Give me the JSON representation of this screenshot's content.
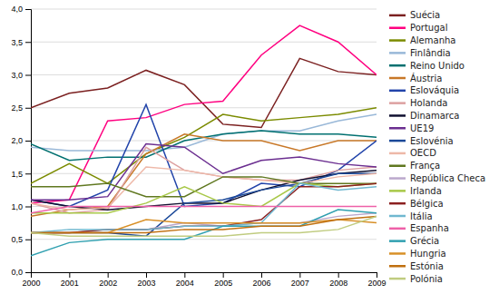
{
  "chart_data": {
    "type": "line",
    "x": [
      2000,
      2001,
      2002,
      2003,
      2004,
      2005,
      2006,
      2007,
      2008,
      2009
    ],
    "xlim": [
      2000,
      2009
    ],
    "xticks": [
      2000,
      2001,
      2002,
      2003,
      2004,
      2005,
      2006,
      2007,
      2008,
      2009
    ],
    "ylim": [
      0.0,
      4.0
    ],
    "yticks": [
      {
        "value": 0.0,
        "label": "0,0"
      },
      {
        "value": 0.5,
        "label": "0,5"
      },
      {
        "value": 1.0,
        "label": "1,0"
      },
      {
        "value": 1.5,
        "label": "1,5"
      },
      {
        "value": 2.0,
        "label": "2,0"
      },
      {
        "value": 2.5,
        "label": "2,5"
      },
      {
        "value": 3.0,
        "label": "3,0"
      },
      {
        "value": 3.5,
        "label": "3,5"
      },
      {
        "value": 4.0,
        "label": "4,0"
      }
    ],
    "grid": true,
    "legend": "right",
    "series": [
      {
        "name": "Suécia",
        "color": "#7B2020",
        "values": [
          2.5,
          2.72,
          2.8,
          3.07,
          2.85,
          2.25,
          2.2,
          3.25,
          3.05,
          3.0
        ]
      },
      {
        "name": "Portugal",
        "color": "#FF0080",
        "values": [
          1.05,
          1.1,
          2.3,
          2.35,
          2.55,
          2.6,
          3.3,
          3.75,
          3.5,
          3.0
        ]
      },
      {
        "name": "Alemanha",
        "color": "#7B8B00",
        "values": [
          1.35,
          1.65,
          1.35,
          1.8,
          2.05,
          2.4,
          2.3,
          2.35,
          2.4,
          2.5
        ]
      },
      {
        "name": "Finlândia",
        "color": "#99B8D8",
        "values": [
          1.9,
          1.85,
          1.85,
          1.85,
          1.9,
          2.1,
          2.15,
          2.15,
          2.3,
          2.4
        ]
      },
      {
        "name": "Reino Unido",
        "color": "#007070",
        "values": [
          1.95,
          1.7,
          1.75,
          1.75,
          2.0,
          2.1,
          2.15,
          2.1,
          2.1,
          2.05
        ]
      },
      {
        "name": "Áustria",
        "color": "#C87828",
        "values": [
          0.85,
          0.95,
          1.0,
          1.8,
          2.1,
          2.0,
          2.0,
          1.85,
          2.0,
          2.0
        ]
      },
      {
        "name": "Eslováquia",
        "color": "#2244AA",
        "values": [
          1.1,
          1.0,
          1.25,
          2.55,
          1.0,
          1.05,
          1.35,
          1.3,
          1.55,
          2.0
        ]
      },
      {
        "name": "Holanda",
        "color": "#DDA0A0",
        "values": [
          1.05,
          0.9,
          0.95,
          1.9,
          1.55,
          1.45,
          1.4,
          1.4,
          1.55,
          1.6
        ]
      },
      {
        "name": "Dinamarca",
        "color": "#101030",
        "values": [
          1.1,
          1.0,
          0.95,
          1.0,
          1.05,
          1.05,
          1.25,
          1.4,
          1.5,
          1.55
        ]
      },
      {
        "name": "UE19",
        "color": "#6B2E90",
        "values": [
          1.1,
          1.1,
          1.15,
          1.95,
          1.9,
          1.5,
          1.7,
          1.75,
          1.65,
          1.6
        ]
      },
      {
        "name": "Eslovénia",
        "color": "#1A4898",
        "values": [
          0.6,
          0.6,
          0.6,
          0.55,
          1.05,
          1.1,
          1.25,
          1.35,
          1.5,
          1.5
        ]
      },
      {
        "name": "OECD",
        "color": "#EEB8A8",
        "values": [
          1.05,
          0.95,
          0.98,
          1.6,
          1.55,
          1.45,
          1.4,
          1.35,
          1.45,
          1.5
        ]
      },
      {
        "name": "França",
        "color": "#607820",
        "values": [
          1.3,
          1.3,
          1.35,
          1.15,
          1.15,
          1.45,
          1.45,
          1.35,
          1.35,
          1.35
        ]
      },
      {
        "name": "República Checa",
        "color": "#BBA8CC",
        "values": [
          0.6,
          0.6,
          0.65,
          0.65,
          0.75,
          0.7,
          0.75,
          0.75,
          0.85,
          0.9
        ]
      },
      {
        "name": "Irlanda",
        "color": "#A8C848",
        "values": [
          0.9,
          0.9,
          0.9,
          1.05,
          1.3,
          1.05,
          1.0,
          1.35,
          1.3,
          1.35
        ]
      },
      {
        "name": "Bélgica",
        "color": "#8B2020",
        "values": [
          0.6,
          0.6,
          0.65,
          0.65,
          0.7,
          0.7,
          0.8,
          1.3,
          1.3,
          1.35
        ]
      },
      {
        "name": "Itália",
        "color": "#70B8D0",
        "values": [
          0.6,
          0.65,
          0.65,
          0.65,
          0.7,
          0.7,
          0.75,
          1.35,
          1.25,
          1.3
        ]
      },
      {
        "name": "Espanha",
        "color": "#EE60A8",
        "values": [
          0.9,
          1.0,
          1.0,
          1.0,
          1.0,
          1.0,
          1.0,
          1.0,
          1.0,
          1.0
        ]
      },
      {
        "name": "Grécia",
        "color": "#30A0B0",
        "values": [
          0.25,
          0.45,
          0.5,
          0.5,
          0.5,
          0.7,
          0.7,
          0.7,
          0.95,
          0.9
        ]
      },
      {
        "name": "Hungria",
        "color": "#D89028",
        "values": [
          0.6,
          0.6,
          0.6,
          0.8,
          0.75,
          0.75,
          0.75,
          0.75,
          0.8,
          0.75
        ]
      },
      {
        "name": "Estónia",
        "color": "#C07010",
        "values": [
          0.6,
          0.6,
          0.6,
          0.6,
          0.65,
          0.65,
          0.7,
          0.7,
          0.8,
          0.85
        ]
      },
      {
        "name": "Polónia",
        "color": "#C0CC80",
        "values": [
          0.6,
          0.55,
          0.55,
          0.55,
          0.55,
          0.55,
          0.6,
          0.6,
          0.65,
          0.85
        ]
      }
    ]
  }
}
